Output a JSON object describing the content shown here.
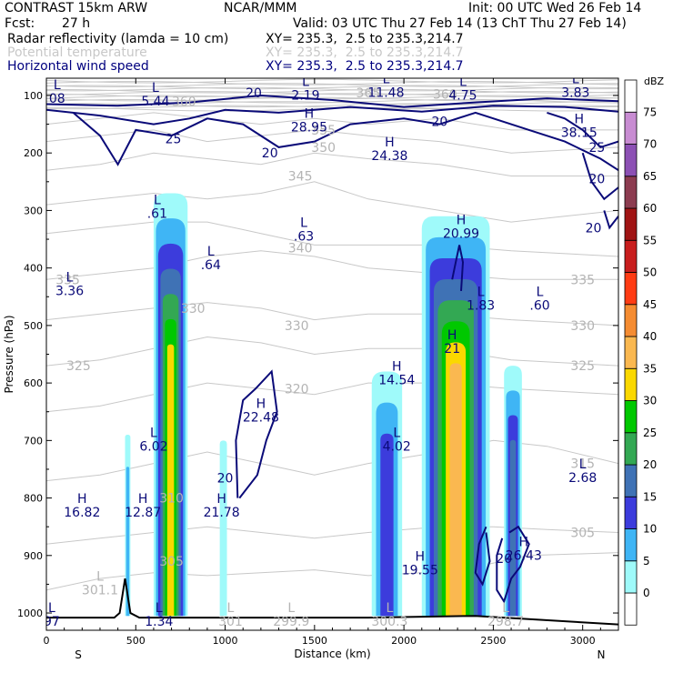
{
  "header": {
    "model": "CONTRAST 15km ARW",
    "org": "NCAR/MMM",
    "init": "Init: 00 UTC Wed 26 Feb 14",
    "fcst_label": "Fcst:",
    "fcst_value": "27 h",
    "valid": "Valid: 03 UTC Thu 27 Feb 14 (13 ChT Thu 27 Feb 14)",
    "fields": [
      {
        "name": "Radar reflectivity (lamda = 10 cm)",
        "xy": "XY= 235.3,  2.5 to 235.3,214.7",
        "color": "#000000"
      },
      {
        "name": "Potential temperature",
        "xy": "XY= 235.3,  2.5 to 235.3,214.7",
        "color": "#c8c8c8"
      },
      {
        "name": "Horizontal wind speed",
        "xy": "XY= 235.3,  2.5 to 235.3,214.7",
        "color": "#00007f"
      }
    ]
  },
  "chart_data": {
    "type": "heatmap",
    "xlabel": "Distance (km)",
    "ylabel": "Pressure (hPa)",
    "xlim": [
      0,
      3200
    ],
    "ylim": [
      1030,
      70
    ],
    "x_ticks": [
      0,
      500,
      1000,
      1500,
      2000,
      2500,
      3000
    ],
    "y_ticks": [
      100,
      200,
      300,
      400,
      500,
      600,
      700,
      800,
      900,
      1000
    ],
    "x_end_labels": {
      "left": "S",
      "right": "N"
    },
    "colorbar": {
      "unit": "dBZ",
      "levels": [
        0,
        5,
        10,
        15,
        20,
        25,
        30,
        35,
        40,
        45,
        50,
        55,
        60,
        65,
        70,
        75
      ],
      "colors": [
        "#ffffff",
        "#9ffafa",
        "#3fb5f5",
        "#3c3cdc",
        "#3f72b5",
        "#33a853",
        "#00c800",
        "#fad800",
        "#fab850",
        "#f58c32",
        "#ff3c14",
        "#c81e1e",
        "#a01414",
        "#8c3c50",
        "#8c50b4",
        "#c88cd2",
        "#ffffff"
      ]
    },
    "reflectivity_cores": [
      {
        "x_min": 600,
        "x_max": 790,
        "top_hpa": 270,
        "peak_dbz": 35
      },
      {
        "x_min": 440,
        "x_max": 470,
        "top_hpa": 690,
        "peak_dbz": 10
      },
      {
        "x_min": 970,
        "x_max": 1010,
        "top_hpa": 700,
        "peak_dbz": 5
      },
      {
        "x_min": 1820,
        "x_max": 1990,
        "top_hpa": 580,
        "peak_dbz": 15
      },
      {
        "x_min": 2100,
        "x_max": 2480,
        "top_hpa": 310,
        "peak_dbz": 40
      },
      {
        "x_min": 2560,
        "x_max": 2660,
        "top_hpa": 570,
        "peak_dbz": 20
      }
    ],
    "theta_contour_labels": [
      {
        "x": 1420,
        "p": 240,
        "text": "345"
      },
      {
        "x": 1550,
        "p": 190,
        "text": "350"
      },
      {
        "x": 1550,
        "p": 160,
        "text": "355"
      },
      {
        "x": 1420,
        "p": 365,
        "text": "340"
      },
      {
        "x": 3000,
        "p": 420,
        "text": "335"
      },
      {
        "x": 3000,
        "p": 500,
        "text": "330"
      },
      {
        "x": 1400,
        "p": 500,
        "text": "330"
      },
      {
        "x": 3000,
        "p": 570,
        "text": "325"
      },
      {
        "x": 180,
        "p": 570,
        "text": "325"
      },
      {
        "x": 1400,
        "p": 610,
        "text": "320"
      },
      {
        "x": 3000,
        "p": 740,
        "text": "315"
      },
      {
        "x": 3000,
        "p": 860,
        "text": "305"
      },
      {
        "x": 120,
        "p": 420,
        "text": "335"
      },
      {
        "x": 700,
        "p": 910,
        "text": "305"
      },
      {
        "x": 700,
        "p": 800,
        "text": "310"
      },
      {
        "x": 820,
        "p": 470,
        "text": "330"
      },
      {
        "x": 770,
        "p": 110,
        "text": "360"
      },
      {
        "x": 1800,
        "p": 95,
        "text": "365"
      },
      {
        "x": 2230,
        "p": 98,
        "text": "360"
      }
    ],
    "wind_contour_labels": [
      {
        "x": 1160,
        "p": 95,
        "text": "20"
      },
      {
        "x": 710,
        "p": 175,
        "text": "25"
      },
      {
        "x": 1250,
        "p": 200,
        "text": "20"
      },
      {
        "x": 2200,
        "p": 145,
        "text": "20"
      },
      {
        "x": 3080,
        "p": 190,
        "text": "25"
      },
      {
        "x": 3080,
        "p": 245,
        "text": "20"
      },
      {
        "x": 3060,
        "p": 330,
        "text": "20"
      },
      {
        "x": 1000,
        "p": 765,
        "text": "20"
      },
      {
        "x": 2560,
        "p": 905,
        "text": "20"
      }
    ],
    "extrema_labels": [
      {
        "kind": "L",
        "value": "5.44",
        "x": 610,
        "p": 100,
        "series": "wind"
      },
      {
        "kind": "L",
        "value": "2.19",
        "x": 1450,
        "p": 90,
        "series": "wind"
      },
      {
        "kind": "L",
        "value": "11.48",
        "x": 1900,
        "p": 85,
        "series": "wind"
      },
      {
        "kind": "L",
        "value": "4.75",
        "x": 2330,
        "p": 90,
        "series": "wind"
      },
      {
        "kind": "L",
        "value": "3.83",
        "x": 2960,
        "p": 85,
        "series": "wind"
      },
      {
        "kind": "H",
        "value": "28.95",
        "x": 1470,
        "p": 145,
        "series": "wind"
      },
      {
        "kind": "H",
        "value": "24.38",
        "x": 1920,
        "p": 195,
        "series": "wind"
      },
      {
        "kind": "H",
        "value": "38.15",
        "x": 2980,
        "p": 155,
        "series": "wind"
      },
      {
        "kind": "L",
        "value": ".61",
        "x": 620,
        "p": 295,
        "series": "wind"
      },
      {
        "kind": "L",
        "value": ".63",
        "x": 1440,
        "p": 335,
        "series": "wind"
      },
      {
        "kind": "L",
        "value": ".64",
        "x": 920,
        "p": 385,
        "series": "wind"
      },
      {
        "kind": "L",
        "value": "3.36",
        "x": 130,
        "p": 430,
        "series": "wind"
      },
      {
        "kind": "H",
        "value": "20.99",
        "x": 2320,
        "p": 330,
        "series": "wind"
      },
      {
        "kind": "L",
        "value": "1.83",
        "x": 2430,
        "p": 455,
        "series": "wind"
      },
      {
        "kind": "L",
        "value": ".60",
        "x": 2760,
        "p": 455,
        "series": "wind"
      },
      {
        "kind": "H",
        "value": "21",
        "x": 2270,
        "p": 530,
        "series": "wind"
      },
      {
        "kind": "H",
        "value": "14.54",
        "x": 1960,
        "p": 585,
        "series": "wind"
      },
      {
        "kind": "H",
        "value": "22.48",
        "x": 1200,
        "p": 650,
        "series": "wind"
      },
      {
        "kind": "L",
        "value": "6.02",
        "x": 600,
        "p": 700,
        "series": "wind"
      },
      {
        "kind": "L",
        "value": "4.02",
        "x": 1960,
        "p": 700,
        "series": "wind"
      },
      {
        "kind": "L",
        "value": "2.68",
        "x": 3000,
        "p": 755,
        "series": "wind"
      },
      {
        "kind": "H",
        "value": "16.82",
        "x": 200,
        "p": 815,
        "series": "wind"
      },
      {
        "kind": "H",
        "value": "12.87",
        "x": 540,
        "p": 815,
        "series": "wind"
      },
      {
        "kind": "H",
        "value": "21.78",
        "x": 980,
        "p": 815,
        "series": "wind"
      },
      {
        "kind": "H",
        "value": "19.55",
        "x": 2090,
        "p": 915,
        "series": "wind"
      },
      {
        "kind": "H",
        "value": "26.43",
        "x": 2670,
        "p": 890,
        "series": "wind"
      },
      {
        "kind": "L",
        "value": "301.1",
        "x": 300,
        "p": 950,
        "series": "theta"
      },
      {
        "kind": "L",
        "value": "1.34",
        "x": 630,
        "p": 1005,
        "series": "wind"
      },
      {
        "kind": "L",
        "value": "301",
        "x": 1030,
        "p": 1005,
        "series": "theta"
      },
      {
        "kind": "L",
        "value": "299.9",
        "x": 1370,
        "p": 1005,
        "series": "theta"
      },
      {
        "kind": "L",
        "value": "300.3",
        "x": 1920,
        "p": 1005,
        "series": "theta"
      },
      {
        "kind": "L",
        "value": "298.7",
        "x": 2570,
        "p": 1005,
        "series": "theta"
      },
      {
        "kind": "L",
        "value": "08",
        "x": 60,
        "p": 95,
        "series": "wind"
      },
      {
        "kind": "L",
        "value": "97",
        "x": 30,
        "p": 1005,
        "series": "wind"
      }
    ],
    "terrain_peak": {
      "x": 440,
      "p": 940
    }
  },
  "colors": {
    "wind": "#0a0a78",
    "theta": "#c8c8c8",
    "terrain": "#000000"
  }
}
